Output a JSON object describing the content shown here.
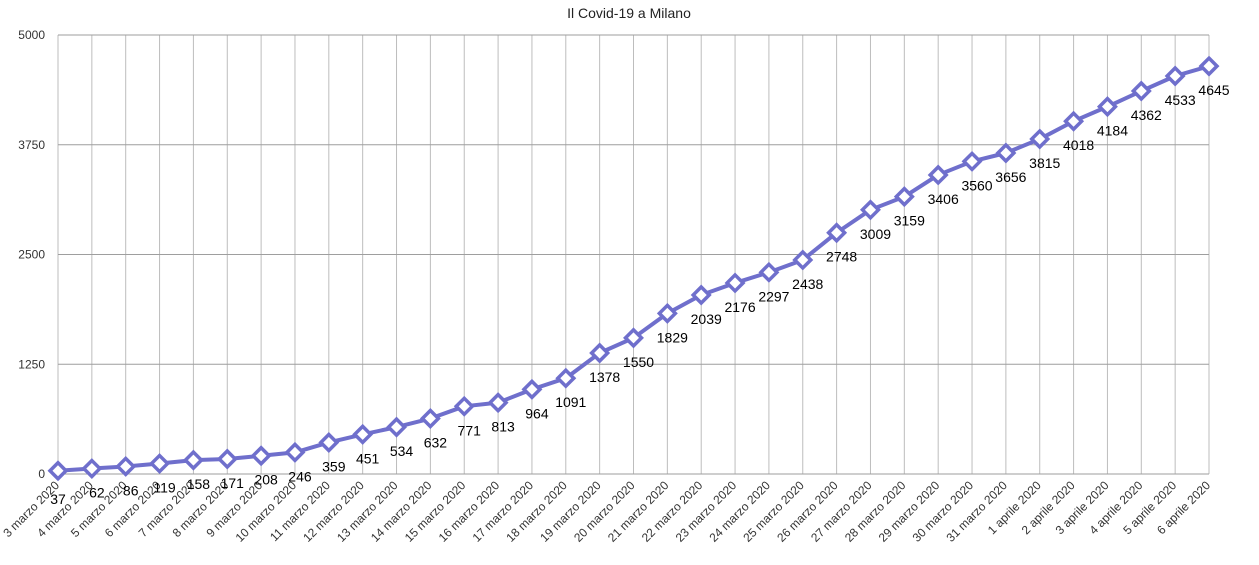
{
  "chart_data": {
    "type": "line",
    "title": "Il Covid-19 a Milano",
    "xlabel": "",
    "ylabel": "",
    "ylim": [
      0,
      5000
    ],
    "yticks": [
      0,
      1250,
      2500,
      3750,
      5000
    ],
    "grid": true,
    "series_color": "#6f6fcc",
    "categories": [
      "3 marzo 2020",
      "4 marzo 2020",
      "5 marzo 2020",
      "6 marzo 2020",
      "7 marzo 2020",
      "8 marzo 2020",
      "9 marzo 2020",
      "10 marzo 2020",
      "11 marzo 2020",
      "12 marzo 2020",
      "13 marzo 2020",
      "14 marzo 2020",
      "15 marzo 2020",
      "16 marzo 2020",
      "17 marzo 2020",
      "18 marzo 2020",
      "19 marzo 2020",
      "20 marzo 2020",
      "21 marzo 2020",
      "22 marzo 2020",
      "23 marzo 2020",
      "24 marzo 2020",
      "25 marzo 2020",
      "26 marzo 2020",
      "27 marzo 2020",
      "28 marzo 2020",
      "29 marzo 2020",
      "30 marzo 2020",
      "31 marzo 2020",
      "1 aprile 2020",
      "2 aprile 2020",
      "3 aprile 2020",
      "4 aprile 2020",
      "5 aprile 2020",
      "6 aprile 2020"
    ],
    "values": [
      37,
      62,
      86,
      119,
      158,
      171,
      208,
      246,
      359,
      451,
      534,
      632,
      771,
      813,
      964,
      1091,
      1378,
      1550,
      1829,
      2039,
      2176,
      2297,
      2438,
      2748,
      3009,
      3159,
      3406,
      3560,
      3656,
      3815,
      4018,
      4184,
      4362,
      4533,
      4645
    ],
    "data_labels": [
      "37",
      "62",
      "86",
      "119",
      "158",
      "171",
      "208",
      "246",
      "359",
      "451",
      "534",
      "632",
      "771",
      "813",
      "964",
      "1091",
      "1378",
      "1550",
      "1829",
      "2039",
      "2176",
      "2297",
      "2438",
      "2748",
      "3009",
      "3159",
      "3406",
      "3560",
      "3656",
      "3815",
      "4018",
      "4184",
      "4362",
      "4533",
      "4645"
    ]
  }
}
